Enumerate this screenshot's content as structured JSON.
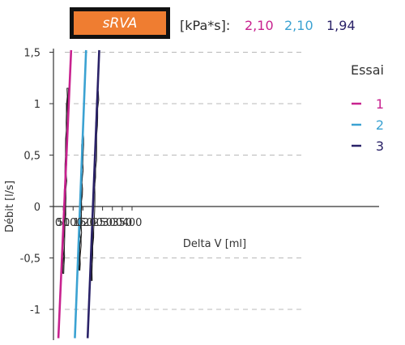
{
  "header": {
    "badge_label": "sRVA",
    "unit_label": "[kPa*s]:",
    "values": [
      "2,10",
      "2,10",
      "1,94"
    ]
  },
  "chart_data": {
    "type": "line",
    "title": "",
    "xlabel": "Delta V [ml]",
    "ylabel": "Débit [l/s]",
    "xlim": [
      -5,
      400
    ],
    "ylim": [
      -1.2,
      1.5
    ],
    "x_ticks": [
      0,
      50,
      100,
      150,
      200,
      250,
      300,
      350,
      400
    ],
    "x_tick_labels": [
      "0",
      "50",
      "100",
      "150",
      "200",
      "250",
      "300",
      "350",
      "400"
    ],
    "y_ticks": [
      -1,
      -0.5,
      0,
      0.5,
      1,
      1.5
    ],
    "y_tick_labels": [
      "-1",
      "-0,5",
      "0",
      "0,5",
      "1",
      "1,5"
    ],
    "grid": "horizontal dashed",
    "legend": {
      "title": "Essai",
      "position": "top-right"
    },
    "series": [
      {
        "name": "1",
        "color": "#c8228f",
        "fit_line": [
          [
            25,
            -1.28
          ],
          [
            90,
            1.52
          ]
        ],
        "loop": {
          "flow": [
            -0.65,
            1.15
          ],
          "volume": [
            48,
            72
          ]
        }
      },
      {
        "name": "2",
        "color": "#3ba2d2",
        "fit_line": [
          [
            109,
            -1.28
          ],
          [
            166,
            1.52
          ]
        ],
        "loop": {
          "flow": [
            -0.62,
            0.72
          ],
          "volume": [
            131,
            149
          ]
        }
      },
      {
        "name": "3",
        "color": "#2a2268",
        "fit_line": [
          [
            174,
            -1.28
          ],
          [
            233,
            1.52
          ]
        ],
        "loop": {
          "flow": [
            -0.72,
            1.12
          ],
          "volume": [
            190,
            225
          ]
        }
      }
    ],
    "loop_color": "#1a1a1a"
  }
}
